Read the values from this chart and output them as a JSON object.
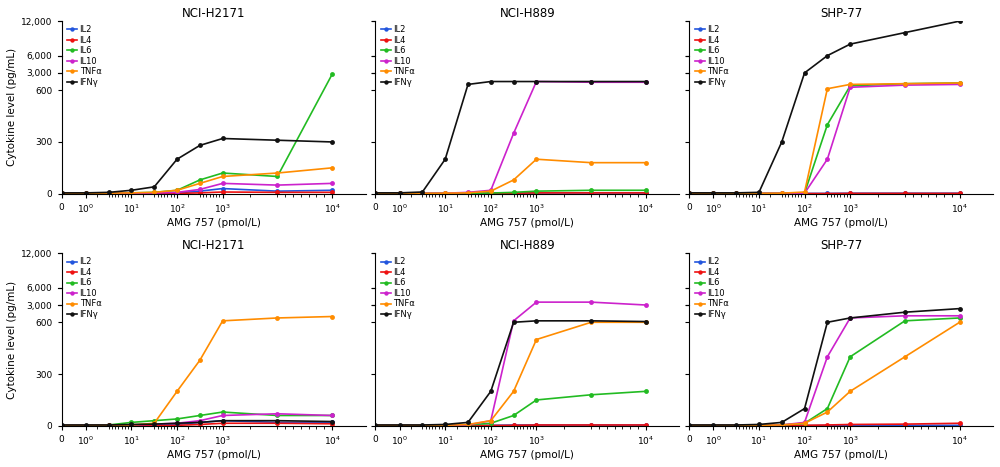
{
  "titles": [
    "NCI-H2171",
    "NCI-H889",
    "SHP-77"
  ],
  "xlabel": "AMG 757 (pmol/L)",
  "ylabel": "Cytokine level (pg/mL)",
  "cytokine_labels": [
    "IL2",
    "IL4",
    "IL6",
    "IL10",
    "TNFα",
    "IFNγ"
  ],
  "colors": [
    "#2255DD",
    "#EE1111",
    "#22BB22",
    "#CC22CC",
    "#FF8C00",
    "#111111"
  ],
  "x_values": [
    0,
    1,
    3,
    10,
    30,
    100,
    300,
    1000,
    3000,
    10000
  ],
  "row1": {
    "NCI-H2171": {
      "IL2": [
        2,
        2,
        3,
        5,
        3,
        5,
        15,
        30,
        15,
        20
      ],
      "IL4": [
        1,
        1,
        1,
        1,
        1,
        2,
        5,
        10,
        8,
        8
      ],
      "IL6": [
        2,
        2,
        3,
        5,
        8,
        20,
        80,
        120,
        100,
        2800
      ],
      "IL10": [
        2,
        2,
        2,
        3,
        4,
        8,
        25,
        60,
        50,
        60
      ],
      "TNFa": [
        2,
        2,
        3,
        5,
        8,
        20,
        60,
        100,
        120,
        150
      ],
      "IFNg": [
        5,
        5,
        8,
        20,
        40,
        200,
        280,
        320,
        310,
        300
      ]
    },
    "NCI-H889": {
      "IL2": [
        2,
        2,
        2,
        2,
        2,
        3,
        5,
        5,
        5,
        5
      ],
      "IL4": [
        1,
        1,
        1,
        1,
        1,
        2,
        3,
        5,
        5,
        5
      ],
      "IL6": [
        2,
        2,
        2,
        2,
        2,
        4,
        8,
        15,
        20,
        20
      ],
      "IL10": [
        2,
        2,
        2,
        3,
        8,
        20,
        350,
        1800,
        1700,
        1700
      ],
      "TNFa": [
        2,
        2,
        2,
        3,
        5,
        15,
        80,
        200,
        180,
        180
      ],
      "IFNg": [
        5,
        5,
        10,
        200,
        1400,
        1800,
        1800,
        1800,
        1800,
        1800
      ]
    },
    "SHP-77": {
      "IL2": [
        2,
        2,
        2,
        2,
        2,
        2,
        2,
        3,
        3,
        3
      ],
      "IL4": [
        1,
        1,
        1,
        1,
        1,
        1,
        1,
        2,
        2,
        2
      ],
      "IL6": [
        2,
        2,
        2,
        2,
        2,
        4,
        400,
        1200,
        1500,
        1600
      ],
      "IL10": [
        2,
        2,
        2,
        2,
        2,
        3,
        200,
        1000,
        1300,
        1400
      ],
      "TNFa": [
        2,
        2,
        2,
        2,
        3,
        10,
        800,
        1400,
        1500,
        1600
      ],
      "IFNg": [
        5,
        5,
        5,
        8,
        300,
        3000,
        6000,
        8000,
        10000,
        12000
      ]
    }
  },
  "row2": {
    "NCI-H2171": {
      "IL2": [
        2,
        2,
        3,
        5,
        5,
        8,
        20,
        30,
        20,
        20
      ],
      "IL4": [
        1,
        1,
        1,
        2,
        2,
        3,
        8,
        15,
        15,
        12
      ],
      "IL6": [
        2,
        2,
        5,
        20,
        30,
        40,
        60,
        80,
        60,
        60
      ],
      "IL10": [
        2,
        2,
        3,
        5,
        10,
        15,
        30,
        60,
        70,
        60
      ],
      "TNFa": [
        2,
        2,
        3,
        5,
        15,
        200,
        380,
        800,
        1200,
        1400
      ],
      "IFNg": [
        5,
        5,
        5,
        8,
        10,
        15,
        20,
        30,
        30,
        25
      ]
    },
    "NCI-H889": {
      "IL2": [
        2,
        2,
        2,
        2,
        2,
        3,
        5,
        5,
        5,
        5
      ],
      "IL4": [
        1,
        1,
        1,
        1,
        1,
        2,
        3,
        5,
        5,
        5
      ],
      "IL6": [
        2,
        2,
        2,
        3,
        5,
        15,
        60,
        150,
        180,
        200
      ],
      "IL10": [
        2,
        2,
        2,
        3,
        5,
        30,
        800,
        3500,
        3500,
        3000
      ],
      "TNFa": [
        2,
        2,
        2,
        3,
        8,
        30,
        200,
        500,
        600,
        600
      ],
      "IFNg": [
        5,
        5,
        5,
        8,
        20,
        200,
        600,
        800,
        800,
        700
      ]
    },
    "SHP-77": {
      "IL2": [
        2,
        2,
        2,
        2,
        2,
        2,
        2,
        3,
        3,
        3
      ],
      "IL4": [
        1,
        1,
        1,
        1,
        2,
        3,
        5,
        8,
        10,
        15
      ],
      "IL6": [
        2,
        2,
        2,
        3,
        5,
        15,
        100,
        400,
        800,
        1200
      ],
      "IL10": [
        2,
        2,
        2,
        2,
        5,
        20,
        400,
        1200,
        1500,
        1500
      ],
      "TNFa": [
        2,
        2,
        2,
        3,
        5,
        15,
        80,
        200,
        400,
        600
      ],
      "IFNg": [
        5,
        5,
        5,
        8,
        20,
        100,
        600,
        1200,
        2000,
        2500
      ]
    }
  },
  "ytick_vals": [
    0,
    300,
    600,
    3000,
    6000,
    12000
  ],
  "ytick_labels": [
    "0",
    "300",
    "600",
    "3,000",
    "6,000",
    "12,000"
  ],
  "xtick_vals": [
    0,
    1,
    10,
    100,
    1000,
    10000
  ],
  "xtick_labels": [
    "0",
    "$10^0$",
    "$10^1$",
    "$10^2$",
    "$10^3$",
    "$10^4$"
  ]
}
